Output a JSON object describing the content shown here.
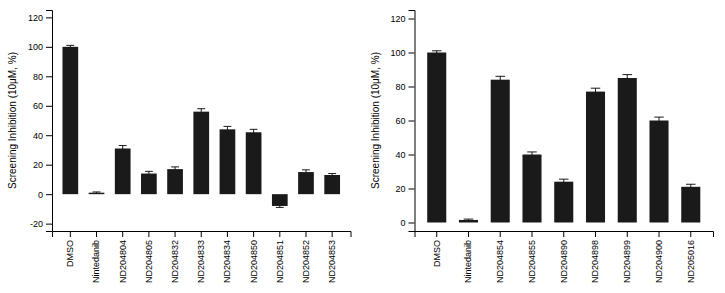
{
  "chart_data": [
    {
      "type": "bar",
      "categories": [
        "DMSO",
        "Nintedanib",
        "ND204804",
        "ND204805",
        "ND204832",
        "ND204833",
        "ND204834",
        "ND204850",
        "ND204851",
        "ND204852",
        "ND204853"
      ],
      "values": [
        100,
        1,
        31,
        14,
        17,
        56,
        44,
        42,
        -8,
        15,
        13
      ],
      "errors": [
        1,
        0.5,
        2,
        1.5,
        1.5,
        2,
        2,
        2,
        1,
        1.5,
        1
      ],
      "ylabel": "Screening Inhibition (10μM, %)",
      "ylim": [
        -25,
        125
      ],
      "yticks": [
        -20,
        0,
        20,
        40,
        60,
        80,
        100,
        120
      ],
      "color": "#1a1a1a"
    },
    {
      "type": "bar",
      "categories": [
        "DMSO",
        "Nintedanib",
        "ND204854",
        "ND204855",
        "ND204890",
        "ND204898",
        "ND204899",
        "ND204900",
        "ND205016"
      ],
      "values": [
        100,
        1.5,
        84,
        40,
        24,
        77,
        85,
        60,
        21
      ],
      "errors": [
        1,
        0.5,
        2,
        1.5,
        1.5,
        2,
        2,
        2,
        1.5
      ],
      "ylabel": "Screening Inhibition (10μM, %)",
      "ylim": [
        -5,
        125
      ],
      "yticks": [
        0,
        20,
        40,
        60,
        80,
        100,
        120
      ],
      "color": "#1a1a1a"
    }
  ]
}
